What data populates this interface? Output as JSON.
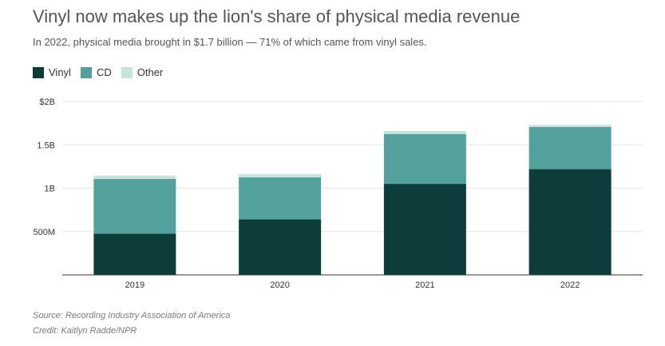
{
  "title": "Vinyl now makes up the lion's share of physical media revenue",
  "subtitle": "In 2022, physical media brought in $1.7 billion — 71% of which came from vinyl sales.",
  "source": "Source: Recording Industry Association of America",
  "credit": "Credit: Kaitlyn Radde/NPR",
  "colors": {
    "vinyl": "#0c3d3a",
    "cd": "#52a19d",
    "other": "#c6e3e0",
    "grid": "#e6e6e6",
    "axis": "#333333"
  },
  "chart_data": {
    "type": "bar",
    "stacked": true,
    "title": "Vinyl now makes up the lion's share of physical media revenue",
    "subtitle": "In 2022, physical media brought in $1.7 billion — 71% of which came from vinyl sales.",
    "xlabel": "",
    "ylabel": "",
    "ylim": [
      0,
      2000
    ],
    "units": "millions USD",
    "categories": [
      "2019",
      "2020",
      "2021",
      "2022"
    ],
    "series": [
      {
        "name": "Vinyl",
        "values": [
          476,
          640,
          1050,
          1220
        ]
      },
      {
        "name": "CD",
        "values": [
          630,
          485,
          575,
          485
        ]
      },
      {
        "name": "Other",
        "values": [
          40,
          37,
          35,
          25
        ]
      }
    ],
    "yticks": [
      {
        "value": 500,
        "label": "500M"
      },
      {
        "value": 1000,
        "label": "1B"
      },
      {
        "value": 1500,
        "label": "1.5B"
      },
      {
        "value": 2000,
        "label": "$2B"
      }
    ],
    "legend_position": "top-left",
    "grid": true
  }
}
